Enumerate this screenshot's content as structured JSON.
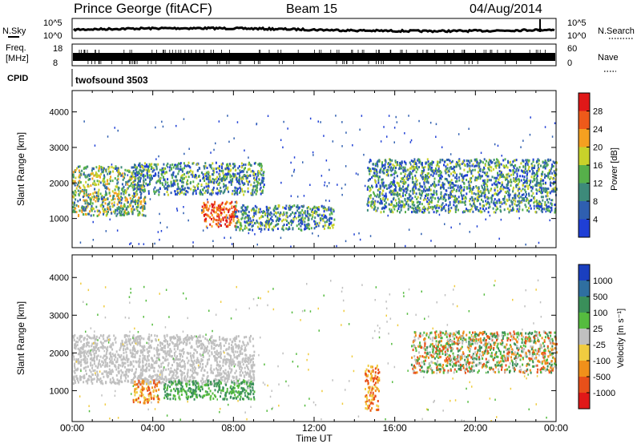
{
  "header": {
    "title": "Prince George (fitACF)",
    "beam": "Beam 15",
    "date": "04/Aug/2014"
  },
  "strip_panels": {
    "nsky": {
      "label": "N.Sky",
      "left_top": "10^5",
      "left_bottom": "10^0",
      "right_top": "10^5",
      "right_bottom": "10^0",
      "right_label": "N.Search"
    },
    "freq": {
      "label_line1": "Freq.",
      "label_line2": "[MHz]",
      "left_top": "18",
      "left_bottom": "8",
      "right_top": "60",
      "right_bottom": "0",
      "right_label": "Nave"
    },
    "cpid": {
      "label": "CPID",
      "value": "twofsound 3503"
    }
  },
  "chart_data": [
    {
      "type": "heatmap",
      "name": "power",
      "ylabel": "Slant Range [km]",
      "yticks": [
        1000,
        2000,
        3000,
        4000
      ],
      "ylim": [
        180,
        4600
      ],
      "xlim_hours": [
        0,
        24
      ],
      "colorbar": {
        "label": "Power [dB]",
        "ticks": [
          "4",
          "8",
          "12",
          "16",
          "20",
          "24",
          "28"
        ],
        "colors": [
          "#1f3fd6",
          "#2f5fb0",
          "#3d8a7a",
          "#56b04a",
          "#c8d22a",
          "#f5a020",
          "#ee5a1a",
          "#e01818"
        ]
      },
      "features": [
        {
          "t0": 0.0,
          "t1": 3.6,
          "r0": 1100,
          "r1": 2500,
          "level": "mid-high"
        },
        {
          "t0": 3.0,
          "t1": 9.5,
          "r0": 1700,
          "r1": 2600,
          "level": "mid"
        },
        {
          "t0": 6.4,
          "t1": 8.2,
          "r0": 800,
          "r1": 1500,
          "level": "high"
        },
        {
          "t0": 8.0,
          "t1": 13.0,
          "r0": 700,
          "r1": 1400,
          "level": "mid"
        },
        {
          "t0": 14.6,
          "t1": 24.0,
          "r0": 1200,
          "r1": 2700,
          "level": "mid"
        }
      ]
    },
    {
      "type": "heatmap",
      "name": "velocity",
      "ylabel": "Slant Range [km]",
      "yticks": [
        1000,
        2000,
        3000,
        4000
      ],
      "ylim": [
        180,
        4600
      ],
      "xlim_hours": [
        0,
        24
      ],
      "colorbar": {
        "label": "Velocity [m s⁻¹]",
        "ticks": [
          "1000",
          "500",
          "100",
          "25",
          "-25",
          "-100",
          "-500",
          "-1000"
        ],
        "colors": [
          "#1a3fbf",
          "#2f6fa0",
          "#3a8f5a",
          "#55bb3f",
          "#c0c0c0",
          "#f0cc40",
          "#f0901a",
          "#e8501a",
          "#e01818"
        ]
      },
      "features": [
        {
          "t0": 0.0,
          "t1": 9.0,
          "r0": 1200,
          "r1": 2500,
          "level": "ground"
        },
        {
          "t0": 3.0,
          "t1": 4.3,
          "r0": 700,
          "r1": 1300,
          "level": "orange"
        },
        {
          "t0": 4.5,
          "t1": 9.0,
          "r0": 800,
          "r1": 1300,
          "level": "green"
        },
        {
          "t0": 14.5,
          "t1": 15.2,
          "r0": 500,
          "r1": 1700,
          "level": "orange"
        },
        {
          "t0": 16.8,
          "t1": 24.0,
          "r0": 1500,
          "r1": 2600,
          "level": "mixed"
        }
      ]
    }
  ],
  "xaxis": {
    "ticks": [
      "00:00",
      "04:00",
      "08:00",
      "12:00",
      "16:00",
      "20:00",
      "00:00"
    ],
    "label": "Time UT"
  }
}
